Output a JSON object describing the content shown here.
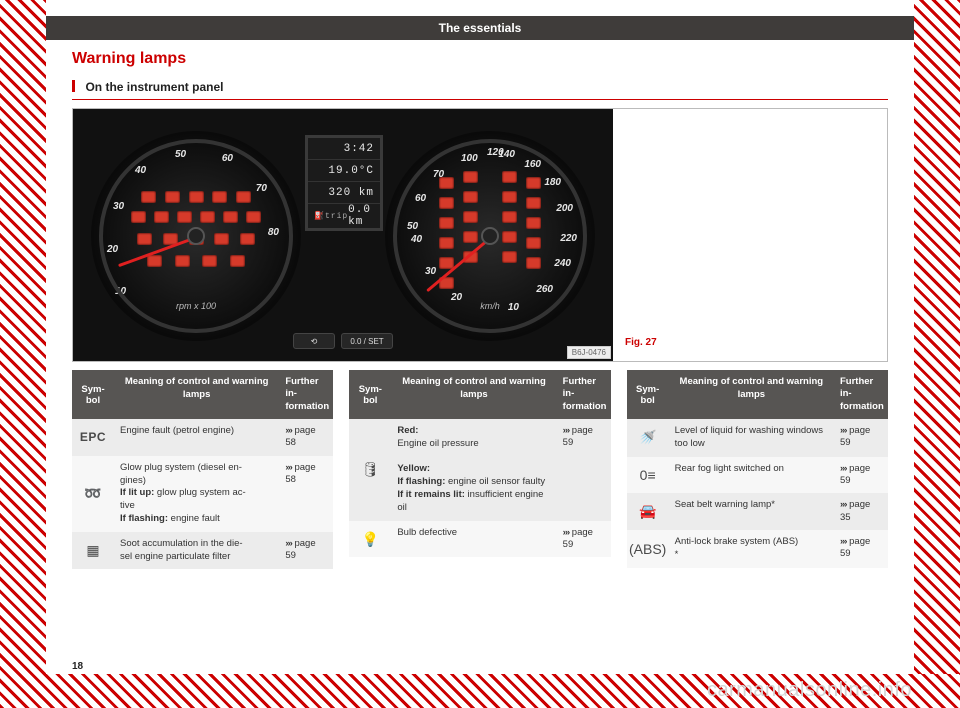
{
  "topbar": "The essentials",
  "heading": "Warning lamps",
  "subheading": "On the instrument panel",
  "page_number": "18",
  "watermark": "carmanualsonline.info",
  "figure": {
    "caption": "Fig. 27",
    "image_ref": "B6J-0476",
    "lcd": {
      "time": "3:42",
      "temp": "19.0°C",
      "odo": "320 km",
      "trip_label": "trip",
      "trip": "0.0 km",
      "fuel_icon": "⛽"
    },
    "buttons": {
      "left": "⟲",
      "right": "0.0 / SET"
    },
    "tach": {
      "scale": [
        "10",
        "20",
        "30",
        "40",
        "50",
        "60",
        "70",
        "80"
      ],
      "unit": "rpm x 100"
    },
    "speedo": {
      "scale": [
        "10",
        "20",
        "30",
        "40",
        "50",
        "60",
        "70",
        "100",
        "120",
        "140",
        "160",
        "180",
        "200",
        "220",
        "240",
        "260"
      ],
      "unit": "km/h"
    }
  },
  "table_header": {
    "symbol": "Sym-\nbol",
    "meaning": "Meaning of control and warning lamps",
    "info": "Further in-\nformation"
  },
  "chevron": "›››",
  "columns": [
    {
      "rows": [
        {
          "sym_kind": "epc",
          "sym": "EPC",
          "meaning_plain": "Engine fault (petrol engine)",
          "page": "58"
        },
        {
          "sym_kind": "glyph",
          "sym": "➿",
          "meaning_html": "Glow plug system (diesel en-\ngines)\n<b>If lit up:</b> glow plug system ac-\ntive\n<b>If flashing:</b> engine fault",
          "page": "58"
        },
        {
          "sym_kind": "glyph",
          "sym": "▦",
          "meaning_plain": "Soot accumulation in the die-\nsel engine particulate filter",
          "page": "59"
        }
      ]
    },
    {
      "rows": [
        {
          "sym_kind": "glyph",
          "sym": "🛢",
          "meaning_html": "<b>Red:</b>\nEngine oil pressure\n\n<b>Yellow:</b>\n<b>If flashing:</b> engine oil sensor faulty\n<b>If it remains lit:</b> insufficient engine oil",
          "page": "59"
        },
        {
          "sym_kind": "glyph",
          "sym": "💡",
          "meaning_plain": "Bulb defective",
          "page": "59"
        }
      ]
    },
    {
      "rows": [
        {
          "sym_kind": "glyph",
          "sym": "🚿",
          "meaning_plain": "Level of liquid for washing windows too low",
          "page": "59"
        },
        {
          "sym_kind": "glyph",
          "sym": "0≡",
          "meaning_plain": "Rear fog light switched on",
          "page": "59"
        },
        {
          "sym_kind": "glyph",
          "sym": "🚘",
          "meaning_plain": "Seat belt warning lamp*",
          "page": "35"
        },
        {
          "sym_kind": "glyph",
          "sym": "(ABS)",
          "meaning_plain": "Anti-lock brake system (ABS)\n*",
          "page": "59"
        }
      ]
    }
  ],
  "colors": {
    "accent": "#c00",
    "header_bg": "#575553",
    "row_alt": "#ececec",
    "dash_bg": "#111",
    "warning_icon": "#d63a2a",
    "lcd_text": "#e8e8e8"
  }
}
